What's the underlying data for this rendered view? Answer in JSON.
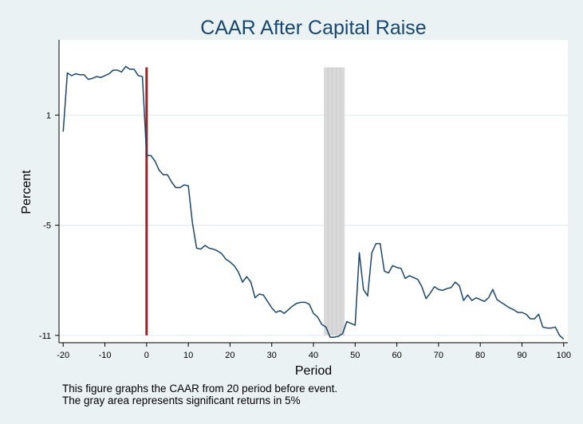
{
  "chart_data": {
    "type": "line",
    "title": "CAAR After Capital Raise",
    "xlabel": "Period",
    "ylabel": "Percent",
    "xlim": [
      -21,
      101
    ],
    "ylim": [
      -11.4,
      5.1
    ],
    "xticks": [
      -20,
      -10,
      0,
      10,
      20,
      30,
      40,
      50,
      60,
      70,
      80,
      90,
      100
    ],
    "yticks": [
      1,
      -5,
      -11
    ],
    "grid": true,
    "legend": "none",
    "event_line": {
      "x": 0,
      "y_from": -11,
      "y_to": 3.6,
      "color": "#8c2a2e"
    },
    "significant_band": {
      "x_from": 42.5,
      "x_to": 47.5,
      "y_from": -11,
      "y_to": 3.6,
      "color": "#d9d9d9"
    },
    "series": [
      {
        "color": "#1a476f",
        "x": [
          -20,
          -19,
          -18,
          -17,
          -16,
          -15,
          -14,
          -13,
          -12,
          -11,
          -10,
          -9,
          -8,
          -7,
          -6,
          -5,
          -4,
          -3,
          -2,
          -1,
          0,
          1,
          2,
          3,
          4,
          5,
          6,
          7,
          8,
          9,
          10,
          11,
          12,
          13,
          14,
          15,
          16,
          17,
          18,
          19,
          20,
          21,
          22,
          23,
          24,
          25,
          26,
          27,
          28,
          29,
          30,
          31,
          32,
          33,
          34,
          35,
          36,
          37,
          38,
          39,
          40,
          41,
          42,
          43,
          44,
          45,
          46,
          47,
          48,
          49,
          50,
          51,
          52,
          53,
          54,
          55,
          56,
          57,
          58,
          59,
          60,
          61,
          62,
          63,
          64,
          65,
          66,
          67,
          68,
          69,
          70,
          71,
          72,
          73,
          74,
          75,
          76,
          77,
          78,
          79,
          80,
          81,
          82,
          83,
          84,
          85,
          86,
          87,
          88,
          89,
          90,
          91,
          92,
          93,
          94,
          95,
          96,
          97,
          98,
          99,
          100
        ],
        "values": [
          0.1,
          3.3,
          3.15,
          3.25,
          3.2,
          3.2,
          2.95,
          3.0,
          3.1,
          3.05,
          3.15,
          3.25,
          3.45,
          3.45,
          3.35,
          3.65,
          3.5,
          3.5,
          3.15,
          3.1,
          -1.2,
          -1.2,
          -1.5,
          -2.0,
          -2.25,
          -2.25,
          -2.65,
          -2.95,
          -2.95,
          -2.8,
          -2.85,
          -4.9,
          -6.25,
          -6.3,
          -6.1,
          -6.25,
          -6.3,
          -6.4,
          -6.55,
          -6.85,
          -7.0,
          -7.2,
          -7.55,
          -8.1,
          -7.8,
          -8.1,
          -8.95,
          -8.75,
          -8.8,
          -9.15,
          -9.5,
          -9.75,
          -9.65,
          -9.8,
          -9.6,
          -9.4,
          -9.25,
          -9.2,
          -9.2,
          -9.3,
          -9.8,
          -10.0,
          -10.4,
          -10.55,
          -11.1,
          -11.1,
          -11.05,
          -10.9,
          -10.25,
          -10.35,
          -10.45,
          -6.5,
          -8.5,
          -8.85,
          -6.5,
          -6.0,
          -6.0,
          -7.5,
          -7.6,
          -7.2,
          -7.3,
          -7.35,
          -7.9,
          -7.75,
          -7.85,
          -7.95,
          -8.35,
          -9.0,
          -8.7,
          -8.35,
          -8.5,
          -8.55,
          -8.45,
          -8.4,
          -8.1,
          -8.3,
          -9.1,
          -8.8,
          -9.1,
          -8.95,
          -9.05,
          -9.15,
          -8.95,
          -8.5,
          -9.05,
          -9.2,
          -9.35,
          -9.5,
          -9.6,
          -9.75,
          -9.75,
          -9.85,
          -10.1,
          -10.1,
          -9.85,
          -10.55,
          -10.6,
          -10.6,
          -10.55,
          -11.0,
          -11.2
        ]
      }
    ]
  },
  "notes": [
    "This figure graphs the CAAR from 20 period before event.",
    "The gray area represents significant returns in 5%"
  ]
}
